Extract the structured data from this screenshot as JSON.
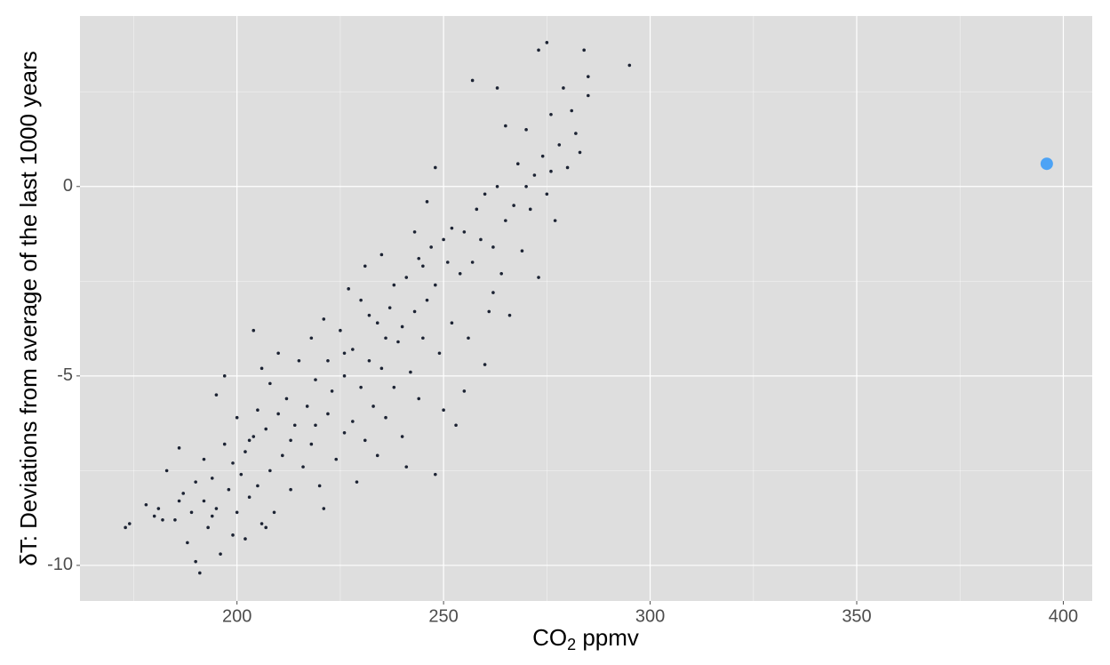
{
  "chart_data": {
    "type": "scatter",
    "xlabel": [
      "CO",
      "2",
      " ppmv"
    ],
    "ylabel": "δT: Deviations from average of the last 1000 years",
    "xlim": [
      162,
      407
    ],
    "ylim": [
      -10.94,
      4.5
    ],
    "xticks": [
      200,
      250,
      300,
      350,
      400
    ],
    "yticks": [
      -10,
      -5,
      0
    ],
    "x_minor_grid": [
      175,
      225,
      275,
      325,
      375
    ],
    "y_minor_grid": [
      -7.5,
      -2.5,
      2.5
    ],
    "grid": true,
    "series": [
      {
        "color": "#1c2333",
        "size": 1.8,
        "x": [
          173,
          174,
          178,
          180,
          181,
          183,
          185,
          186,
          187,
          188,
          189,
          190,
          190,
          191,
          192,
          192,
          193,
          194,
          195,
          195,
          196,
          197,
          197,
          198,
          199,
          200,
          200,
          201,
          202,
          202,
          203,
          204,
          204,
          205,
          205,
          206,
          206,
          207,
          208,
          208,
          209,
          210,
          210,
          211,
          212,
          213,
          214,
          215,
          216,
          217,
          218,
          218,
          219,
          220,
          221,
          221,
          222,
          222,
          223,
          224,
          225,
          226,
          226,
          227,
          228,
          228,
          229,
          230,
          230,
          231,
          231,
          232,
          233,
          234,
          234,
          235,
          235,
          236,
          237,
          238,
          238,
          239,
          240,
          240,
          241,
          241,
          242,
          243,
          243,
          244,
          245,
          245,
          246,
          246,
          247,
          248,
          248,
          248,
          249,
          250,
          250,
          251,
          252,
          252,
          253,
          254,
          255,
          255,
          256,
          257,
          257,
          258,
          259,
          260,
          260,
          261,
          262,
          263,
          263,
          264,
          265,
          265,
          266,
          267,
          268,
          269,
          270,
          271,
          272,
          273,
          273,
          274,
          275,
          276,
          276,
          277,
          278,
          279,
          280,
          281,
          282,
          283,
          284,
          285,
          285,
          295,
          275,
          270,
          262,
          244,
          236,
          232,
          226,
          219,
          213,
          207,
          203,
          199,
          194,
          186,
          182
        ],
        "values": [
          -9.0,
          -8.9,
          -8.4,
          -8.7,
          -8.5,
          -7.5,
          -8.8,
          -6.9,
          -8.1,
          -9.4,
          -8.6,
          -9.9,
          -7.8,
          -10.2,
          -8.3,
          -7.2,
          -9.0,
          -7.7,
          -8.5,
          -5.5,
          -9.7,
          -6.8,
          -5.0,
          -8.0,
          -7.3,
          -8.6,
          -6.1,
          -7.6,
          -9.3,
          -7.0,
          -8.2,
          -6.6,
          -3.8,
          -7.9,
          -5.9,
          -8.9,
          -4.8,
          -6.4,
          -7.5,
          -5.2,
          -8.6,
          -6.0,
          -4.4,
          -7.1,
          -5.6,
          -8.0,
          -6.3,
          -4.6,
          -7.4,
          -5.8,
          -6.8,
          -4.0,
          -5.1,
          -7.9,
          -8.5,
          -3.5,
          -6.0,
          -4.6,
          -5.4,
          -7.2,
          -3.8,
          -6.5,
          -5.0,
          -2.7,
          -6.2,
          -4.3,
          -7.8,
          -5.3,
          -3.0,
          -6.7,
          -2.1,
          -4.6,
          -5.8,
          -3.6,
          -7.1,
          -4.8,
          -1.8,
          -6.1,
          -3.2,
          -5.3,
          -2.6,
          -4.1,
          -6.6,
          -3.7,
          -7.4,
          -2.4,
          -4.9,
          -1.2,
          -3.3,
          -5.6,
          -2.1,
          -4.0,
          -0.4,
          -3.0,
          -1.6,
          -7.6,
          0.5,
          -2.6,
          -4.4,
          -1.4,
          -5.9,
          -2.0,
          -1.1,
          -3.6,
          -6.3,
          -2.3,
          -5.4,
          -1.2,
          -4.0,
          2.8,
          -2.0,
          -0.6,
          -1.4,
          -4.7,
          -0.2,
          -3.3,
          -1.6,
          2.6,
          0.0,
          -2.3,
          -0.9,
          1.6,
          -3.4,
          -0.5,
          0.6,
          -1.7,
          1.5,
          -0.6,
          0.3,
          3.6,
          -2.4,
          0.8,
          -0.2,
          1.9,
          0.4,
          -0.9,
          1.1,
          2.6,
          0.5,
          2.0,
          1.4,
          0.9,
          3.6,
          2.4,
          2.9,
          3.2,
          3.8,
          0.0,
          -2.8,
          -1.9,
          -4.0,
          -3.4,
          -4.4,
          -6.3,
          -6.7,
          -9.0,
          -6.7,
          -9.2,
          -8.7,
          -8.3,
          -8.8
        ]
      },
      {
        "color": "#4da3f5",
        "size": 7,
        "x": [
          396
        ],
        "values": [
          0.6
        ]
      }
    ]
  }
}
